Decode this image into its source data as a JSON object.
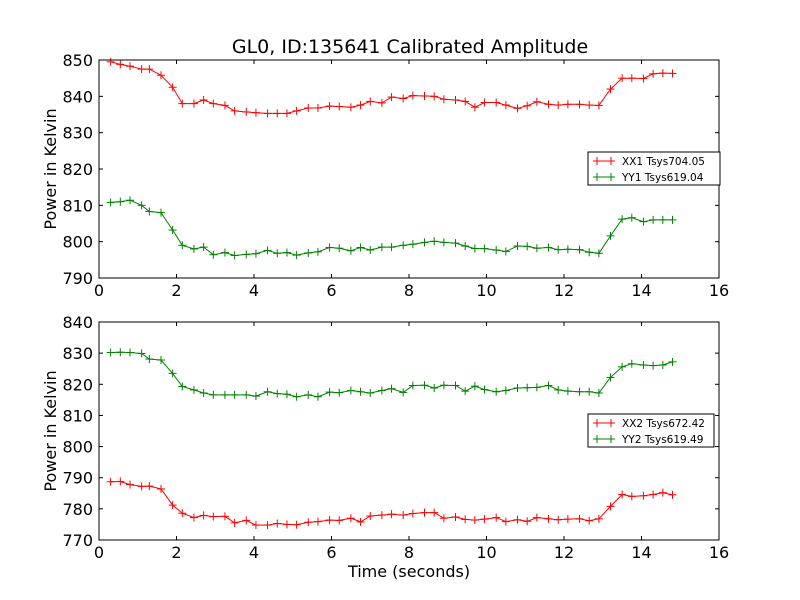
{
  "chart_data": [
    {
      "type": "line",
      "title": "GL0, ID:135641 Calibrated Amplitude",
      "xlabel": "",
      "ylabel": "Power in Kelvin",
      "xlim": [
        0,
        16
      ],
      "ylim": [
        790,
        850
      ],
      "xticks": [
        0,
        2,
        4,
        6,
        8,
        10,
        12,
        14,
        16
      ],
      "yticks": [
        790,
        800,
        810,
        820,
        830,
        840,
        850
      ],
      "grid": false,
      "legend_position": "center-right",
      "x": [
        0.3,
        0.55,
        0.8,
        1.1,
        1.3,
        1.6,
        1.9,
        2.15,
        2.45,
        2.7,
        2.95,
        3.25,
        3.5,
        3.8,
        4.05,
        4.35,
        4.6,
        4.85,
        5.1,
        5.4,
        5.65,
        5.95,
        6.2,
        6.5,
        6.75,
        7.0,
        7.3,
        7.55,
        7.85,
        8.1,
        8.4,
        8.65,
        8.9,
        9.2,
        9.45,
        9.7,
        9.95,
        10.25,
        10.5,
        10.8,
        11.05,
        11.3,
        11.6,
        11.85,
        12.1,
        12.4,
        12.65,
        12.9,
        13.2,
        13.5,
        13.75,
        14.05,
        14.3,
        14.55,
        14.8
      ],
      "series": [
        {
          "name": "XX1 Tsys704.05",
          "color": "#ff0000",
          "values": [
            849.5,
            848.8,
            848.3,
            847.5,
            847.5,
            845.8,
            842.5,
            838.0,
            838.0,
            839.0,
            838.0,
            837.5,
            836.0,
            835.7,
            835.5,
            835.3,
            835.3,
            835.3,
            836.0,
            836.8,
            836.8,
            837.3,
            837.2,
            837.0,
            837.6,
            838.6,
            838.2,
            839.8,
            839.4,
            840.2,
            840.1,
            840.0,
            839.2,
            839.0,
            838.6,
            837.0,
            838.3,
            838.3,
            837.6,
            836.7,
            837.4,
            838.5,
            837.8,
            837.6,
            837.8,
            837.8,
            837.6,
            837.5,
            842.0,
            845.0,
            845.0,
            844.9,
            846.2,
            846.4,
            846.3
          ]
        },
        {
          "name": "YY1 Tsys619.04",
          "color": "#008000",
          "values": [
            810.8,
            811.0,
            811.4,
            810.0,
            808.3,
            808.0,
            803.2,
            799.0,
            798.0,
            798.5,
            796.4,
            797.0,
            796.2,
            796.5,
            796.7,
            797.6,
            796.8,
            797.0,
            796.3,
            796.9,
            797.2,
            798.4,
            798.2,
            797.5,
            798.4,
            797.7,
            798.5,
            798.5,
            799.0,
            799.3,
            799.8,
            800.1,
            799.8,
            799.6,
            798.8,
            798.1,
            798.1,
            797.7,
            797.3,
            798.8,
            798.7,
            798.2,
            798.4,
            797.8,
            797.9,
            797.8,
            797.1,
            796.8,
            801.6,
            806.2,
            806.6,
            805.5,
            806.0,
            806.0,
            806.0
          ]
        }
      ]
    },
    {
      "type": "line",
      "title": "",
      "xlabel": "Time (seconds)",
      "ylabel": "Power in Kelvin",
      "xlim": [
        0,
        16
      ],
      "ylim": [
        770,
        840
      ],
      "xticks": [
        0,
        2,
        4,
        6,
        8,
        10,
        12,
        14,
        16
      ],
      "yticks": [
        770,
        780,
        790,
        800,
        810,
        820,
        830,
        840
      ],
      "grid": false,
      "legend_position": "center-right",
      "x": [
        0.3,
        0.55,
        0.8,
        1.1,
        1.3,
        1.6,
        1.9,
        2.15,
        2.45,
        2.7,
        2.95,
        3.25,
        3.5,
        3.8,
        4.05,
        4.35,
        4.6,
        4.85,
        5.1,
        5.4,
        5.65,
        5.95,
        6.2,
        6.5,
        6.75,
        7.0,
        7.3,
        7.55,
        7.85,
        8.1,
        8.4,
        8.65,
        8.9,
        9.2,
        9.45,
        9.7,
        9.95,
        10.25,
        10.5,
        10.8,
        11.05,
        11.3,
        11.6,
        11.85,
        12.1,
        12.4,
        12.65,
        12.9,
        13.2,
        13.5,
        13.75,
        14.05,
        14.3,
        14.55,
        14.8
      ],
      "series": [
        {
          "name": "XX2 Tsys672.42",
          "color": "#ff0000",
          "values": [
            788.7,
            788.8,
            787.8,
            787.2,
            787.3,
            786.4,
            781.2,
            778.6,
            777.2,
            777.9,
            777.5,
            777.6,
            775.5,
            776.3,
            774.8,
            774.8,
            775.3,
            775.0,
            774.9,
            775.7,
            775.9,
            776.4,
            776.3,
            777.0,
            775.8,
            777.7,
            778.0,
            778.3,
            778.0,
            778.5,
            778.8,
            778.8,
            777.0,
            777.4,
            776.6,
            776.4,
            776.7,
            777.2,
            775.9,
            776.5,
            776.0,
            777.2,
            776.8,
            776.5,
            776.7,
            776.8,
            776.2,
            776.8,
            780.8,
            784.6,
            784.0,
            784.2,
            784.6,
            785.2,
            784.5
          ]
        },
        {
          "name": "YY2 Tsys619.49",
          "color": "#008000",
          "values": [
            830.2,
            830.3,
            830.2,
            829.9,
            828.1,
            827.8,
            823.5,
            819.3,
            818.2,
            817.2,
            816.6,
            816.6,
            816.6,
            816.6,
            816.2,
            817.6,
            817.0,
            816.8,
            816.0,
            816.6,
            816.0,
            817.5,
            817.3,
            818.0,
            817.6,
            817.2,
            818.0,
            818.6,
            817.4,
            819.6,
            819.7,
            818.8,
            819.7,
            819.6,
            817.8,
            819.4,
            818.3,
            817.6,
            818.0,
            818.8,
            818.9,
            819.0,
            819.6,
            818.2,
            817.8,
            817.6,
            817.6,
            817.2,
            822.2,
            825.6,
            826.6,
            826.2,
            826.0,
            826.2,
            827.2
          ]
        }
      ]
    }
  ]
}
